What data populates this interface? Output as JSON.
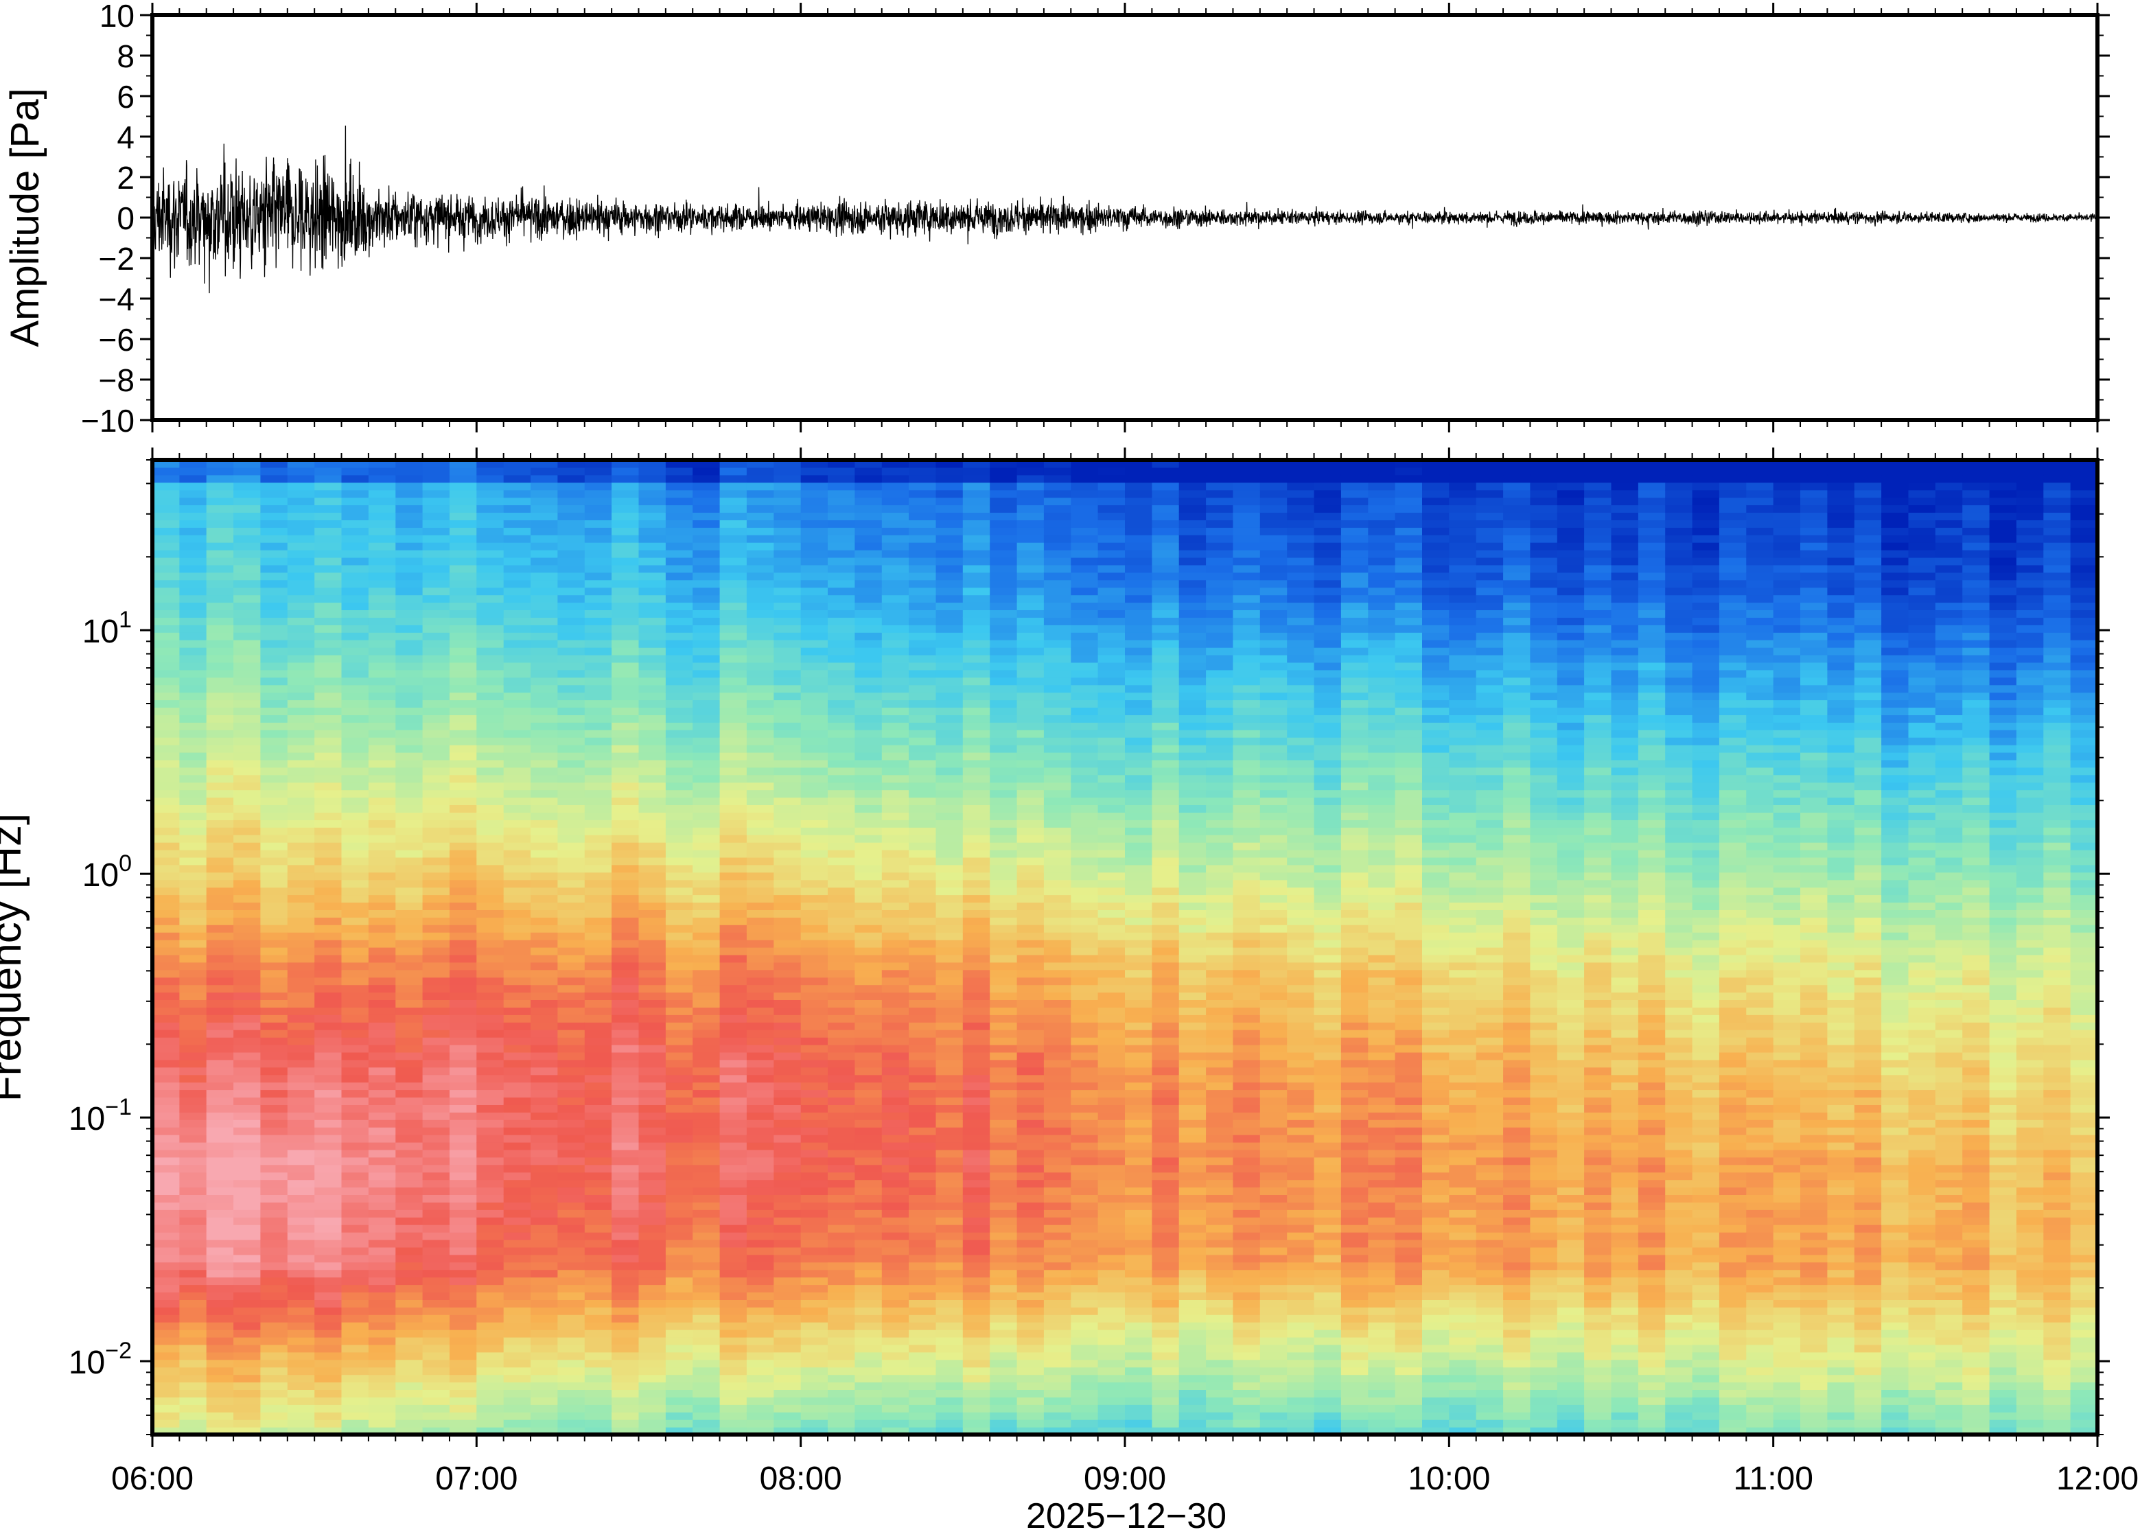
{
  "chart_data": [
    {
      "type": "line",
      "name": "waveform",
      "ylabel": "Amplitude [Pa]",
      "ylim": [
        -10,
        10
      ],
      "yticks": [
        "10",
        "8",
        "6",
        "4",
        "2",
        "0",
        "−2",
        "−4",
        "−6",
        "−8",
        "−10"
      ],
      "ytick_values": [
        10,
        8,
        6,
        4,
        2,
        0,
        -2,
        -4,
        -6,
        -8,
        -10
      ],
      "xlim": [
        "06:00",
        "12:00"
      ],
      "envelope_hours": [
        6.0,
        6.25,
        6.5,
        6.75,
        7.0,
        7.25,
        7.5,
        7.75,
        8.0,
        8.25,
        8.5,
        8.75,
        9.0,
        9.25,
        9.5,
        9.75,
        10.0,
        10.25,
        10.5,
        10.75,
        11.0,
        11.25,
        11.5,
        11.75,
        12.0
      ],
      "envelope_amplitude": [
        4.5,
        5.5,
        5.5,
        2.8,
        2.2,
        2.0,
        1.6,
        1.3,
        1.2,
        1.8,
        1.7,
        1.5,
        1.2,
        0.9,
        0.7,
        0.6,
        0.6,
        0.7,
        0.6,
        0.7,
        0.6,
        0.6,
        0.5,
        0.4,
        0.4
      ],
      "grid": false
    },
    {
      "type": "heatmap",
      "name": "spectrogram",
      "ylabel": "Frequency [Hz]",
      "yscale": "log",
      "ylim": [
        0.005,
        50
      ],
      "yticks": [
        {
          "base": "10",
          "exp": "−2",
          "value": 0.01
        },
        {
          "base": "10",
          "exp": "−1",
          "value": 0.1
        },
        {
          "base": "10",
          "exp": "0",
          "value": 1
        },
        {
          "base": "10",
          "exp": "1",
          "value": 10
        }
      ],
      "xlabel": "2025−12−30",
      "xticks": [
        "06:00",
        "07:00",
        "08:00",
        "09:00",
        "10:00",
        "11:00",
        "12:00"
      ],
      "colormap": [
        "#0022b8",
        "#1a6ee8",
        "#3cc8f0",
        "#8ee8b8",
        "#e6f08c",
        "#f8b050",
        "#f05a50",
        "#f8a8b0"
      ],
      "relative_power": {
        "hours": [
          6.0,
          6.5,
          7.0,
          7.5,
          8.0,
          8.5,
          9.0,
          9.5,
          10.0,
          10.5,
          11.0,
          11.5,
          12.0
        ],
        "log10_frequency": [
          -2.3,
          -2.0,
          -1.6,
          -1.2,
          -0.8,
          -0.4,
          0.0,
          0.4,
          0.8,
          1.2,
          1.6
        ],
        "values": [
          [
            0.55,
            0.7,
            0.95,
            1.0,
            0.9,
            0.8,
            0.65,
            0.55,
            0.45,
            0.35,
            0.3
          ],
          [
            0.55,
            0.72,
            0.96,
            1.0,
            0.92,
            0.8,
            0.65,
            0.55,
            0.43,
            0.33,
            0.28
          ],
          [
            0.45,
            0.62,
            0.85,
            0.9,
            0.9,
            0.8,
            0.65,
            0.52,
            0.4,
            0.3,
            0.24
          ],
          [
            0.42,
            0.6,
            0.82,
            0.88,
            0.88,
            0.8,
            0.64,
            0.5,
            0.38,
            0.28,
            0.2
          ],
          [
            0.4,
            0.58,
            0.8,
            0.86,
            0.86,
            0.78,
            0.62,
            0.48,
            0.36,
            0.25,
            0.18
          ],
          [
            0.4,
            0.58,
            0.8,
            0.85,
            0.84,
            0.76,
            0.6,
            0.46,
            0.34,
            0.22,
            0.16
          ],
          [
            0.36,
            0.54,
            0.75,
            0.8,
            0.78,
            0.7,
            0.55,
            0.42,
            0.3,
            0.18,
            0.12
          ],
          [
            0.36,
            0.52,
            0.74,
            0.78,
            0.74,
            0.66,
            0.52,
            0.4,
            0.28,
            0.14,
            0.06
          ],
          [
            0.36,
            0.52,
            0.74,
            0.76,
            0.72,
            0.64,
            0.5,
            0.38,
            0.26,
            0.12,
            0.06
          ],
          [
            0.38,
            0.54,
            0.74,
            0.75,
            0.7,
            0.62,
            0.48,
            0.37,
            0.25,
            0.12,
            0.06
          ],
          [
            0.4,
            0.55,
            0.72,
            0.72,
            0.66,
            0.58,
            0.46,
            0.35,
            0.22,
            0.1,
            0.04
          ],
          [
            0.42,
            0.56,
            0.72,
            0.7,
            0.64,
            0.56,
            0.44,
            0.33,
            0.2,
            0.08,
            0.03
          ],
          [
            0.4,
            0.55,
            0.7,
            0.68,
            0.62,
            0.55,
            0.42,
            0.32,
            0.2,
            0.08,
            0.03
          ]
        ]
      },
      "grid": false
    }
  ]
}
